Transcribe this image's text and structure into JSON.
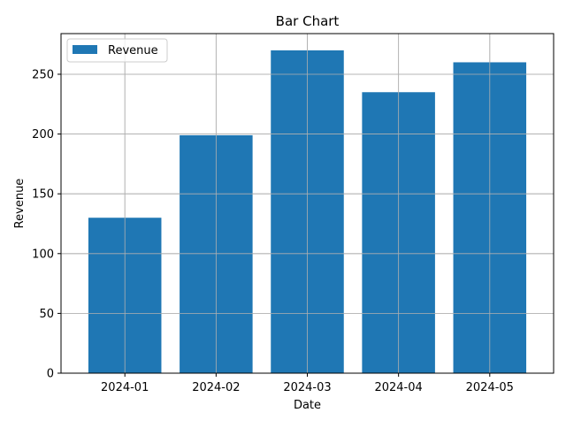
{
  "chart_data": {
    "type": "bar",
    "title": "Bar Chart",
    "xlabel": "Date",
    "ylabel": "Revenue",
    "categories": [
      "2024-01",
      "2024-02",
      "2024-03",
      "2024-04",
      "2024-05"
    ],
    "series": [
      {
        "name": "Revenue",
        "values": [
          130,
          199,
          270,
          235,
          260
        ],
        "color": "#1f77b4"
      }
    ],
    "ylim": [
      0,
      284
    ],
    "yticks": [
      0,
      50,
      100,
      150,
      200,
      250
    ],
    "grid": true,
    "legend": {
      "position": "top-left",
      "entries": [
        "Revenue"
      ]
    }
  }
}
